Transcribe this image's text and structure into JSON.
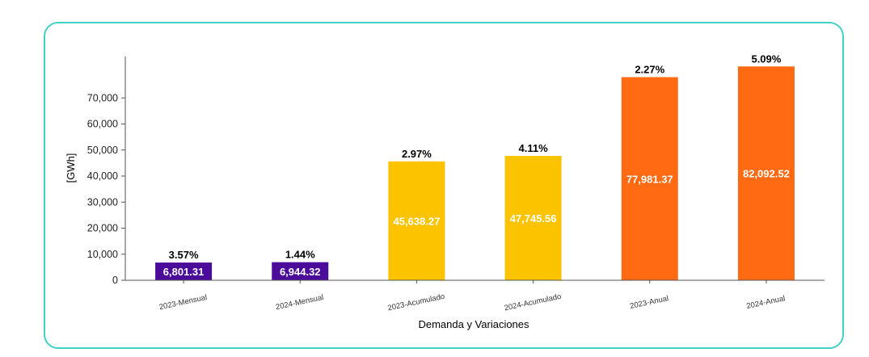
{
  "chart_data": {
    "type": "bar",
    "xlabel": "Demanda y Variaciones",
    "ylabel": "[GWh]",
    "ylim": [
      0,
      82000
    ],
    "yticks": [
      0,
      10000,
      20000,
      30000,
      40000,
      50000,
      60000,
      70000
    ],
    "ytick_labels": [
      "0",
      "10,000",
      "20,000",
      "30,000",
      "40,000",
      "50,000",
      "60,000",
      "70,000"
    ],
    "grid": false,
    "categories": [
      "2023-Mensual",
      "2024-Mensual",
      "2023-Acumulado",
      "2024-Acumulado",
      "2023-Anual",
      "2024-Anual"
    ],
    "values": [
      6801.31,
      6944.32,
      45638.27,
      47745.56,
      77981.37,
      82092.52
    ],
    "value_labels": [
      "6,801.31",
      "6,944.32",
      "45,638.27",
      "47,745.56",
      "77,981.37",
      "82,092.52"
    ],
    "variation_labels": [
      "3.57%",
      "1.44%",
      "2.97%",
      "4.11%",
      "2.27%",
      "5.09%"
    ],
    "colors": [
      "#4b0c9a",
      "#4b0c9a",
      "#fcc400",
      "#fcc400",
      "#ff6a13",
      "#ff6a13"
    ]
  },
  "card_border_color": "#40d2c6"
}
